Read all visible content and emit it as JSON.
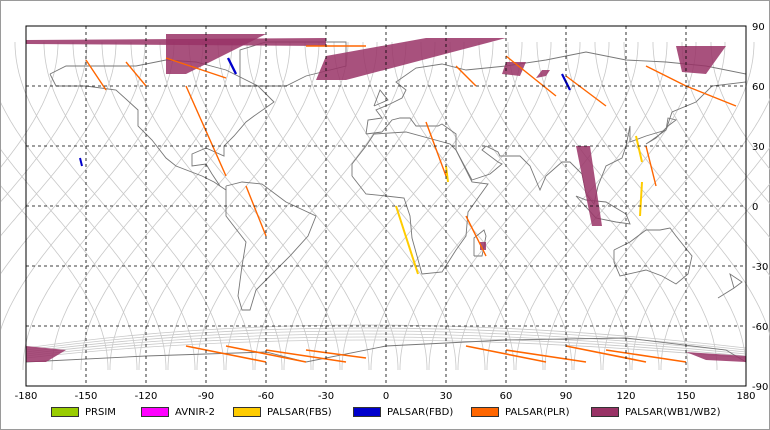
{
  "map": {
    "lon_ticks": [
      "-180",
      "-150",
      "-120",
      "-90",
      "-60",
      "-30",
      "0",
      "30",
      "60",
      "90",
      "120",
      "150",
      "180"
    ],
    "lat_ticks": [
      "90",
      "60",
      "30",
      "0",
      "-30",
      "-60",
      "-90"
    ],
    "colors": {
      "grid": "#000000",
      "coast": "#777777",
      "orbit": "#c8c8c8",
      "frame": "#9a9a9a"
    }
  },
  "legend": {
    "items": [
      {
        "label": "PRSIM",
        "color": "#99cc00"
      },
      {
        "label": "AVNIR-2",
        "color": "#ff00ff"
      },
      {
        "label": "PALSAR(FBS)",
        "color": "#ffcc00"
      },
      {
        "label": "PALSAR(FBD)",
        "color": "#0000cc"
      },
      {
        "label": "PALSAR(PLR)",
        "color": "#ff6600"
      },
      {
        "label": "PALSAR(WB1/WB2)",
        "color": "#993366"
      }
    ]
  }
}
